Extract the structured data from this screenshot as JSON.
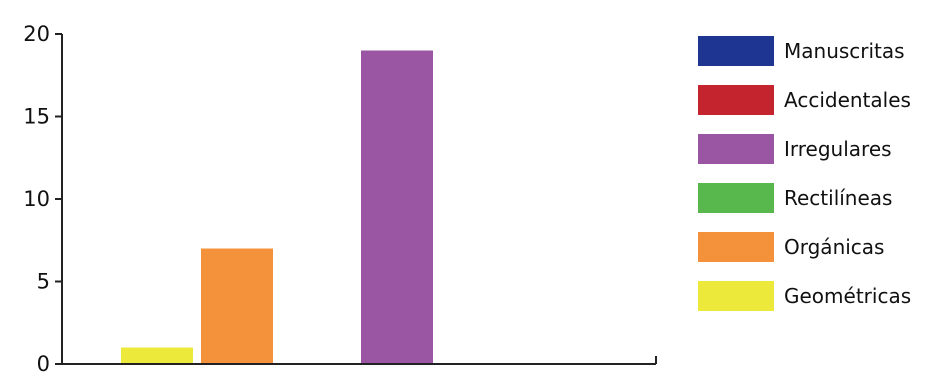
{
  "chart_data": {
    "type": "bar",
    "categories": [
      "Geométricas",
      "Orgánicas",
      "Rectilíneas",
      "Irregulares",
      "Accidentales",
      "Manuscritas"
    ],
    "values": [
      1,
      7,
      0,
      19,
      0,
      0
    ],
    "colors": [
      "#ece93a",
      "#f4913b",
      "#58b84e",
      "#9b56a3",
      "#c4242d",
      "#1f3592"
    ],
    "legend": [
      "Manuscritas",
      "Accidentales",
      "Irregulares",
      "Rectilíneas",
      "Orgánicas",
      "Geométricas"
    ],
    "legend_colors": [
      "#1f3592",
      "#c4242d",
      "#9b56a3",
      "#58b84e",
      "#f4913b",
      "#ece93a"
    ],
    "yticks": [
      0,
      5,
      10,
      15,
      20
    ],
    "ylim": [
      0,
      20
    ],
    "legend_position": "right",
    "grid": false,
    "title": "",
    "xlabel": "",
    "ylabel": ""
  }
}
